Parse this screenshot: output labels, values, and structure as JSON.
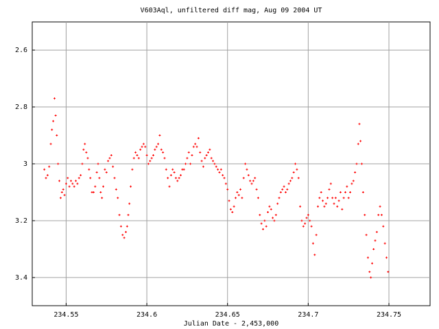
{
  "chart_data": {
    "type": "scatter",
    "title": "V603Aql, unfiltered diff mag, Aug 09 2004 UT",
    "x_label": "Julian Date - 2,453,000",
    "color": "#ff0000",
    "grid": true,
    "y_inverted": true,
    "xlim": [
      234.529,
      234.7755
    ],
    "ylim": [
      3.499,
      2.501
    ],
    "xticks": [
      234.55,
      234.6,
      234.65,
      234.7,
      234.75
    ],
    "yticks": [
      2.6,
      2.8,
      3,
      3.2,
      3.4
    ],
    "x": [
      234.5365,
      234.5375,
      234.5385,
      234.5395,
      234.5405,
      234.5412,
      234.542,
      234.5428,
      234.5435,
      234.5442,
      234.545,
      234.5458,
      234.5466,
      234.5474,
      234.5482,
      234.549,
      234.55,
      234.551,
      234.552,
      234.553,
      234.554,
      234.555,
      234.556,
      234.557,
      234.558,
      234.559,
      234.56,
      234.5608,
      234.5616,
      234.5625,
      234.5634,
      234.5642,
      234.565,
      234.566,
      234.567,
      234.568,
      234.569,
      234.5698,
      234.5706,
      234.5714,
      234.5722,
      234.573,
      234.574,
      234.575,
      234.576,
      234.577,
      234.578,
      234.579,
      234.58,
      234.581,
      234.582,
      234.583,
      234.584,
      234.585,
      234.586,
      234.587,
      234.5878,
      234.5885,
      234.5892,
      234.59,
      234.591,
      234.592,
      234.593,
      234.594,
      234.595,
      234.596,
      234.597,
      234.598,
      234.599,
      234.6,
      234.601,
      234.602,
      234.603,
      234.604,
      234.605,
      234.606,
      234.607,
      234.608,
      234.609,
      234.61,
      234.611,
      234.612,
      234.613,
      234.614,
      234.615,
      234.616,
      234.617,
      234.618,
      234.619,
      234.62,
      234.621,
      234.622,
      234.623,
      234.624,
      234.625,
      234.626,
      234.627,
      234.628,
      234.629,
      234.63,
      234.631,
      234.632,
      234.633,
      234.634,
      234.635,
      234.636,
      234.637,
      234.638,
      234.639,
      234.64,
      234.641,
      234.642,
      234.643,
      234.644,
      234.645,
      234.646,
      234.647,
      234.648,
      234.649,
      234.65,
      234.651,
      234.652,
      234.653,
      234.654,
      234.655,
      234.656,
      234.657,
      234.658,
      234.659,
      234.66,
      234.661,
      234.662,
      234.663,
      234.664,
      234.665,
      234.666,
      234.667,
      234.668,
      234.669,
      234.67,
      234.671,
      234.672,
      234.673,
      234.674,
      234.675,
      234.676,
      234.677,
      234.678,
      234.679,
      234.68,
      234.681,
      234.682,
      234.683,
      234.684,
      234.685,
      234.686,
      234.687,
      234.688,
      234.689,
      234.69,
      234.691,
      234.692,
      234.693,
      234.694,
      234.695,
      234.696,
      234.697,
      234.698,
      234.699,
      234.7,
      234.701,
      234.702,
      234.703,
      234.704,
      234.705,
      234.706,
      234.707,
      234.708,
      234.709,
      234.71,
      234.711,
      234.712,
      234.713,
      234.714,
      234.715,
      234.716,
      234.717,
      234.718,
      234.719,
      234.72,
      234.721,
      234.722,
      234.723,
      234.724,
      234.725,
      234.726,
      234.727,
      234.728,
      234.729,
      234.73,
      234.731,
      234.7317,
      234.7324,
      234.7332,
      234.734,
      234.735,
      234.736,
      234.737,
      234.738,
      234.7388,
      234.7396,
      234.7405,
      234.7415,
      234.7425,
      234.7435,
      234.7445,
      234.7455,
      234.7465,
      234.7475,
      234.7485,
      234.7495
    ],
    "values": [
      3.02,
      3.05,
      3.04,
      3.01,
      2.93,
      2.88,
      2.85,
      2.77,
      2.83,
      2.9,
      3,
      3.06,
      3.12,
      3.1,
      3.09,
      3.11,
      3.07,
      3.05,
      3.08,
      3.06,
      3.07,
      3.08,
      3.06,
      3.07,
      3.05,
      3.04,
      3,
      2.95,
      2.93,
      2.96,
      2.98,
      3.02,
      3.05,
      3.1,
      3.1,
      3.08,
      3.03,
      3,
      3.05,
      3.1,
      3.12,
      3.08,
      3.02,
      3.03,
      2.99,
      2.98,
      2.97,
      3.01,
      3.05,
      3.09,
      3.12,
      3.18,
      3.22,
      3.25,
      3.26,
      3.24,
      3.22,
      3.18,
      3.14,
      3.08,
      3.02,
      2.98,
      2.96,
      2.97,
      2.98,
      2.95,
      2.94,
      2.93,
      2.94,
      2.97,
      3,
      2.99,
      2.98,
      2.97,
      2.95,
      2.94,
      2.93,
      2.9,
      2.95,
      2.96,
      2.98,
      3.02,
      3.05,
      3.08,
      3.04,
      3.02,
      3.03,
      3.05,
      3.06,
      3.05,
      3.04,
      3.02,
      3.02,
      3,
      2.98,
      2.96,
      3,
      2.97,
      2.94,
      2.93,
      2.94,
      2.91,
      2.96,
      2.99,
      3.01,
      2.98,
      2.97,
      2.96,
      2.95,
      2.98,
      2.99,
      3,
      3.01,
      3.02,
      3.03,
      3.02,
      3.04,
      3.05,
      3.07,
      3.09,
      3.13,
      3.16,
      3.17,
      3.15,
      3.12,
      3.1,
      3.11,
      3.09,
      3.12,
      3.05,
      3,
      3.02,
      3.04,
      3.06,
      3.07,
      3.06,
      3.05,
      3.09,
      3.12,
      3.18,
      3.21,
      3.23,
      3.2,
      3.22,
      3.17,
      3.15,
      3.16,
      3.19,
      3.2,
      3.18,
      3.14,
      3.12,
      3.1,
      3.09,
      3.08,
      3.1,
      3.09,
      3.07,
      3.06,
      3.05,
      3.03,
      3,
      3.02,
      3.05,
      3.15,
      3.2,
      3.22,
      3.21,
      3.19,
      3.18,
      3.2,
      3.22,
      3.28,
      3.32,
      3.25,
      3.15,
      3.12,
      3.1,
      3.13,
      3.15,
      3.14,
      3.12,
      3.09,
      3.07,
      3.12,
      3.14,
      3.12,
      3.15,
      3.13,
      3.1,
      3.16,
      3.12,
      3.1,
      3.08,
      3.12,
      3.1,
      3.07,
      3.06,
      3.03,
      3,
      2.93,
      2.86,
      2.92,
      3,
      3.1,
      3.18,
      3.25,
      3.33,
      3.38,
      3.4,
      3.35,
      3.3,
      3.27,
      3.24,
      3.18,
      3.15,
      3.18,
      3.22,
      3.28,
      3.33,
      3.38
    ]
  }
}
